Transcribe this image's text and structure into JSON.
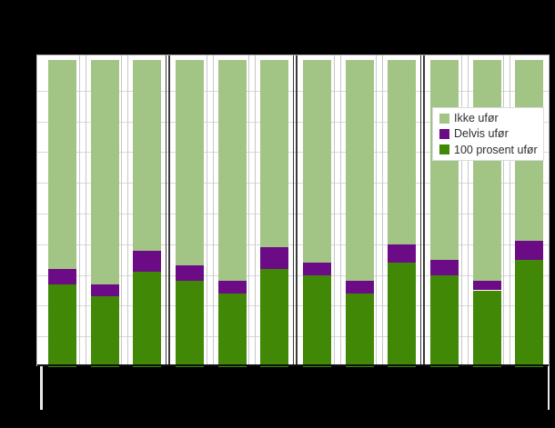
{
  "page": {
    "background": "#000000",
    "title_visible": false
  },
  "plot": {
    "background": "#ffffff",
    "border_color": "#a6a6a6",
    "gridline_color": "#d9d9d9",
    "slot_divider_color": "#c8c8c8",
    "group_divider_color": "#3a3a3a",
    "axis_line_color": "#111111",
    "spine_stub_color": "#e8e8e8"
  },
  "legend": {
    "text_color": "#2e2e2e",
    "items": [
      {
        "label": "Ikke ufør",
        "color": "#a2c585"
      },
      {
        "label": "Delvis ufør",
        "color": "#6b0b85"
      },
      {
        "label": "100 prosent ufør",
        "color": "#408806"
      }
    ]
  },
  "chart_data": {
    "type": "bar",
    "subtype": "stacked-100-percent",
    "orientation": "vertical",
    "n_bars": 12,
    "n_groups": 4,
    "bars_per_group": 3,
    "title": "",
    "xlabel": "",
    "ylabel": "",
    "axis_tick_labels_visible": false,
    "ylim": [
      0,
      100
    ],
    "grid": {
      "horizontal": true,
      "step_percent": 10
    },
    "legend_position": "upper-right",
    "series": [
      {
        "name": "100 prosent ufør",
        "color": "#408806",
        "values": [
          27,
          23,
          31,
          28,
          24,
          32,
          30,
          24,
          34,
          30,
          25,
          35
        ]
      },
      {
        "name": "Delvis ufør",
        "color": "#6b0b85",
        "values": [
          5,
          4,
          7,
          5,
          4,
          7,
          4,
          4,
          6,
          5,
          3,
          6
        ]
      },
      {
        "name": "Ikke ufør",
        "color": "#a2c585",
        "values": [
          68,
          73,
          62,
          67,
          72,
          61,
          66,
          72,
          60,
          65,
          72,
          59
        ]
      }
    ]
  }
}
